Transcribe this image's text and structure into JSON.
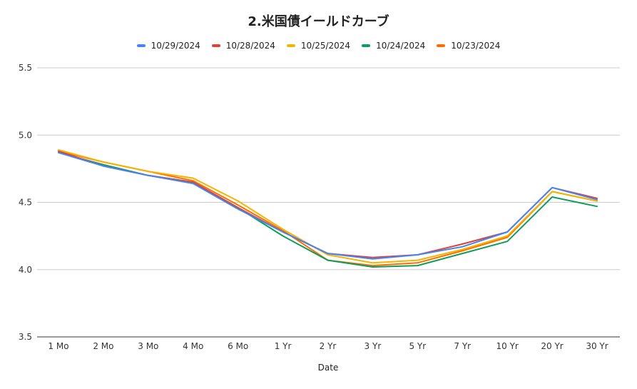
{
  "chart_data": {
    "type": "line",
    "title": "2.米国債イールドカーブ",
    "xlabel": "Date",
    "ylabel": "",
    "ylim": [
      3.5,
      5.5
    ],
    "yticks": [
      "3.5",
      "4.0",
      "4.5",
      "5.0",
      "5.5"
    ],
    "grid": true,
    "legend_position": "top",
    "categories": [
      "1 Mo",
      "2 Mo",
      "3 Mo",
      "4 Mo",
      "6 Mo",
      "1 Yr",
      "2 Yr",
      "3 Yr",
      "5 Yr",
      "7 Yr",
      "10 Yr",
      "20 Yr",
      "30 Yr"
    ],
    "series": [
      {
        "name": "10/29/2024",
        "color": "#4285f4",
        "values": [
          4.87,
          4.77,
          4.7,
          4.64,
          4.45,
          4.28,
          4.12,
          4.08,
          4.11,
          4.17,
          4.28,
          4.61,
          4.52
        ]
      },
      {
        "name": "10/28/2024",
        "color": "#db4437",
        "values": [
          4.88,
          4.77,
          4.7,
          4.65,
          4.46,
          4.28,
          4.12,
          4.09,
          4.11,
          4.19,
          4.28,
          4.61,
          4.53
        ]
      },
      {
        "name": "10/25/2024",
        "color": "#f4b400",
        "values": [
          4.89,
          4.8,
          4.73,
          4.68,
          4.51,
          4.3,
          4.11,
          4.05,
          4.07,
          4.15,
          4.25,
          4.58,
          4.51
        ]
      },
      {
        "name": "10/24/2024",
        "color": "#0f9d58",
        "values": [
          4.87,
          4.78,
          4.7,
          4.65,
          4.46,
          4.25,
          4.07,
          4.02,
          4.03,
          4.12,
          4.21,
          4.54,
          4.47
        ]
      },
      {
        "name": "10/23/2024",
        "color": "#ff6d00",
        "values": [
          4.88,
          4.8,
          4.73,
          4.66,
          4.48,
          4.29,
          4.07,
          4.03,
          4.05,
          4.14,
          4.24,
          4.58,
          4.51
        ]
      }
    ]
  }
}
